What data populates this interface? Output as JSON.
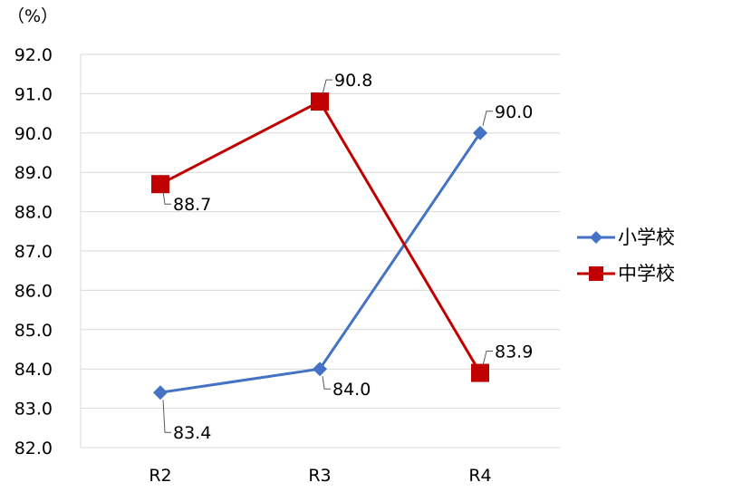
{
  "chart_data": {
    "type": "line",
    "unit_label": "（%）",
    "categories": [
      "R2",
      "R3",
      "R4"
    ],
    "ylim": [
      82.0,
      92.0
    ],
    "ytick_step": 1.0,
    "grid": true,
    "legend_position": "right",
    "series": [
      {
        "name": "小学校",
        "values": [
          83.4,
          84.0,
          90.0
        ],
        "labels": [
          "83.4",
          "84.0",
          "90.0"
        ],
        "color": "#4472C4",
        "marker": "diamond"
      },
      {
        "name": "中学校",
        "values": [
          88.7,
          90.8,
          83.9
        ],
        "labels": [
          "88.7",
          "90.8",
          "83.9"
        ],
        "color": "#C00000",
        "marker": "square"
      }
    ]
  }
}
